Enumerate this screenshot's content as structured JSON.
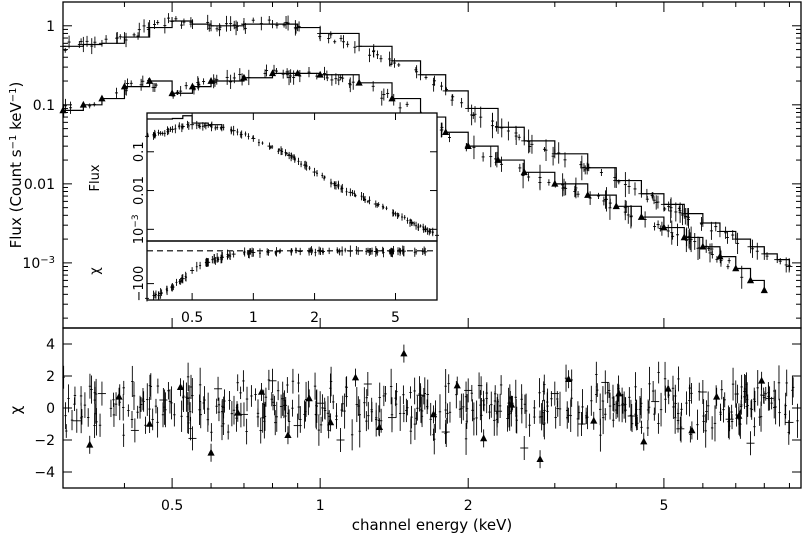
{
  "chart_data": [
    {
      "panel": "main-spectrum",
      "type": "scatter",
      "xlabel": "",
      "ylabel": "Flux (Count s^-1 keV^-1)",
      "x_scale": "log",
      "y_scale": "log",
      "xlim": [
        0.3,
        9.5
      ],
      "ylim": [
        0.00015,
        2.0
      ],
      "y_ticks": [
        {
          "value": 1,
          "label": "1"
        },
        {
          "value": 0.1,
          "label": "0.1"
        },
        {
          "value": 0.01,
          "label": "0.01"
        },
        {
          "value": 0.001,
          "label": "10^-3"
        }
      ],
      "ylabel_parts": {
        "base": "Flux (Count s",
        "exp1": "−1",
        "mid": " keV",
        "exp2": "−1",
        "end": ")"
      },
      "ytick_exp_parts": {
        "base": "10",
        "exp": "−3"
      },
      "series": [
        {
          "marker": "cross",
          "points": [
            {
              "x": 0.3,
              "y": 0.55
            },
            {
              "x": 0.33,
              "y": 0.58
            },
            {
              "x": 0.36,
              "y": 0.6
            },
            {
              "x": 0.4,
              "y": 0.72
            },
            {
              "x": 0.45,
              "y": 0.95
            },
            {
              "x": 0.5,
              "y": 1.15
            },
            {
              "x": 0.55,
              "y": 1.05
            },
            {
              "x": 0.6,
              "y": 1.0
            },
            {
              "x": 0.7,
              "y": 1.05
            },
            {
              "x": 0.8,
              "y": 1.05
            },
            {
              "x": 0.9,
              "y": 0.95
            },
            {
              "x": 1.0,
              "y": 0.8
            },
            {
              "x": 1.2,
              "y": 0.55
            },
            {
              "x": 1.4,
              "y": 0.36
            },
            {
              "x": 1.6,
              "y": 0.24
            },
            {
              "x": 1.8,
              "y": 0.15
            },
            {
              "x": 2.0,
              "y": 0.09
            },
            {
              "x": 2.3,
              "y": 0.052
            },
            {
              "x": 2.6,
              "y": 0.035
            },
            {
              "x": 3.0,
              "y": 0.024
            },
            {
              "x": 3.5,
              "y": 0.016
            },
            {
              "x": 4.0,
              "y": 0.011
            },
            {
              "x": 4.5,
              "y": 0.0075
            },
            {
              "x": 5.0,
              "y": 0.0055
            },
            {
              "x": 5.5,
              "y": 0.0042
            },
            {
              "x": 6.0,
              "y": 0.0032
            },
            {
              "x": 6.5,
              "y": 0.0025
            },
            {
              "x": 7.0,
              "y": 0.002
            },
            {
              "x": 7.5,
              "y": 0.0016
            },
            {
              "x": 8.0,
              "y": 0.0013
            },
            {
              "x": 8.5,
              "y": 0.0011
            },
            {
              "x": 9.0,
              "y": 0.0009
            }
          ]
        },
        {
          "marker": "triangle",
          "points": [
            {
              "x": 0.3,
              "y": 0.085
            },
            {
              "x": 0.33,
              "y": 0.1
            },
            {
              "x": 0.36,
              "y": 0.12
            },
            {
              "x": 0.4,
              "y": 0.17
            },
            {
              "x": 0.45,
              "y": 0.2
            },
            {
              "x": 0.5,
              "y": 0.14
            },
            {
              "x": 0.55,
              "y": 0.17
            },
            {
              "x": 0.6,
              "y": 0.2
            },
            {
              "x": 0.7,
              "y": 0.22
            },
            {
              "x": 0.8,
              "y": 0.25
            },
            {
              "x": 0.9,
              "y": 0.25
            },
            {
              "x": 1.0,
              "y": 0.24
            },
            {
              "x": 1.2,
              "y": 0.19
            },
            {
              "x": 1.4,
              "y": 0.12
            },
            {
              "x": 1.6,
              "y": 0.07
            },
            {
              "x": 1.8,
              "y": 0.045
            },
            {
              "x": 2.0,
              "y": 0.03
            },
            {
              "x": 2.3,
              "y": 0.02
            },
            {
              "x": 2.6,
              "y": 0.014
            },
            {
              "x": 3.0,
              "y": 0.01
            },
            {
              "x": 3.5,
              "y": 0.0072
            },
            {
              "x": 4.0,
              "y": 0.0052
            },
            {
              "x": 4.5,
              "y": 0.0038
            },
            {
              "x": 5.0,
              "y": 0.0028
            },
            {
              "x": 5.5,
              "y": 0.0021
            },
            {
              "x": 6.0,
              "y": 0.0016
            },
            {
              "x": 6.5,
              "y": 0.0012
            },
            {
              "x": 7.0,
              "y": 0.00085
            },
            {
              "x": 7.5,
              "y": 0.0006
            },
            {
              "x": 8.0,
              "y": 0.00045
            }
          ]
        }
      ]
    },
    {
      "panel": "residuals",
      "type": "scatter",
      "xlabel": "channel energy (keV)",
      "ylabel": "χ",
      "x_scale": "log",
      "xlim": [
        0.3,
        9.5
      ],
      "ylim": [
        -5,
        5
      ],
      "x_ticks": [
        {
          "value": 0.5,
          "label": "0.5"
        },
        {
          "value": 1,
          "label": "1"
        },
        {
          "value": 2,
          "label": "2"
        },
        {
          "value": 5,
          "label": "5"
        }
      ],
      "y_ticks": [
        {
          "value": 4,
          "label": "4"
        },
        {
          "value": 2,
          "label": "2"
        },
        {
          "value": 0,
          "label": "0"
        },
        {
          "value": -2,
          "label": "−2"
        },
        {
          "value": -4,
          "label": "−4"
        }
      ],
      "series": [
        {
          "marker": "cross",
          "points": [
            {
              "x": 0.32,
              "y": -0.8
            },
            {
              "x": 0.36,
              "y": 0.9
            },
            {
              "x": 0.42,
              "y": -1.4
            },
            {
              "x": 0.48,
              "y": 0.5
            },
            {
              "x": 0.55,
              "y": -1.9
            },
            {
              "x": 0.62,
              "y": 1.2
            },
            {
              "x": 0.7,
              "y": -0.4
            },
            {
              "x": 0.8,
              "y": 1.7
            },
            {
              "x": 0.9,
              "y": -1.1
            },
            {
              "x": 1.0,
              "y": 0.3
            },
            {
              "x": 1.1,
              "y": -2.0
            },
            {
              "x": 1.25,
              "y": 1.5
            },
            {
              "x": 1.4,
              "y": -0.6
            },
            {
              "x": 1.6,
              "y": 0.8
            },
            {
              "x": 1.8,
              "y": -1.5
            },
            {
              "x": 2.0,
              "y": 1.1
            },
            {
              "x": 2.3,
              "y": -0.2
            },
            {
              "x": 2.6,
              "y": -2.5
            },
            {
              "x": 3.0,
              "y": 0.9
            },
            {
              "x": 3.4,
              "y": -1.0
            },
            {
              "x": 3.8,
              "y": 1.6
            },
            {
              "x": 4.3,
              "y": -0.5
            },
            {
              "x": 4.8,
              "y": 0.4
            },
            {
              "x": 5.4,
              "y": -1.3
            },
            {
              "x": 6.0,
              "y": 1.0
            },
            {
              "x": 6.8,
              "y": -0.7
            },
            {
              "x": 7.5,
              "y": -2.2
            },
            {
              "x": 8.2,
              "y": 0.6
            },
            {
              "x": 9.0,
              "y": -0.9
            }
          ]
        },
        {
          "marker": "triangle",
          "points": [
            {
              "x": 0.34,
              "y": -2.3
            },
            {
              "x": 0.39,
              "y": 0.7
            },
            {
              "x": 0.45,
              "y": -1.0
            },
            {
              "x": 0.52,
              "y": 1.3
            },
            {
              "x": 0.6,
              "y": -2.8
            },
            {
              "x": 0.68,
              "y": -0.3
            },
            {
              "x": 0.76,
              "y": 1.0
            },
            {
              "x": 0.86,
              "y": -1.7
            },
            {
              "x": 0.95,
              "y": 0.6
            },
            {
              "x": 1.05,
              "y": -0.9
            },
            {
              "x": 1.18,
              "y": 1.9
            },
            {
              "x": 1.32,
              "y": -1.2
            },
            {
              "x": 1.48,
              "y": 3.4
            },
            {
              "x": 1.7,
              "y": -0.4
            },
            {
              "x": 1.9,
              "y": 1.4
            },
            {
              "x": 2.15,
              "y": -1.9
            },
            {
              "x": 2.45,
              "y": 0.2
            },
            {
              "x": 2.8,
              "y": -3.2
            },
            {
              "x": 3.2,
              "y": 1.8
            },
            {
              "x": 3.6,
              "y": -0.8
            },
            {
              "x": 4.05,
              "y": 0.9
            },
            {
              "x": 4.55,
              "y": -2.1
            },
            {
              "x": 5.1,
              "y": 1.2
            },
            {
              "x": 5.7,
              "y": -1.4
            },
            {
              "x": 6.4,
              "y": 0.7
            },
            {
              "x": 7.1,
              "y": -0.5
            },
            {
              "x": 7.9,
              "y": 1.7
            }
          ]
        }
      ],
      "reference_line": 0
    },
    {
      "panel": "inset-spectrum",
      "type": "scatter",
      "ylabel": "Flux",
      "x_scale": "log",
      "y_scale": "log",
      "xlim": [
        0.3,
        8.0
      ],
      "ylim": [
        0.0005,
        1.0
      ],
      "y_ticks": [
        {
          "value": 0.1,
          "label": "0.1"
        },
        {
          "value": 0.01,
          "label": "0.01"
        },
        {
          "value": 0.001,
          "label": "10^-3"
        }
      ],
      "ytick_exp_parts": {
        "base": "10",
        "exp": "−3"
      },
      "series": [
        {
          "marker": "cross",
          "points": [
            {
              "x": 0.3,
              "y": 0.25
            },
            {
              "x": 0.35,
              "y": 0.3
            },
            {
              "x": 0.4,
              "y": 0.38
            },
            {
              "x": 0.45,
              "y": 0.45
            },
            {
              "x": 0.5,
              "y": 0.5
            },
            {
              "x": 0.6,
              "y": 0.48
            },
            {
              "x": 0.7,
              "y": 0.42
            },
            {
              "x": 0.8,
              "y": 0.35
            },
            {
              "x": 1.0,
              "y": 0.22
            },
            {
              "x": 1.2,
              "y": 0.14
            },
            {
              "x": 1.5,
              "y": 0.08
            },
            {
              "x": 1.8,
              "y": 0.045
            },
            {
              "x": 2.0,
              "y": 0.03
            },
            {
              "x": 2.5,
              "y": 0.015
            },
            {
              "x": 3.0,
              "y": 0.009
            },
            {
              "x": 4.0,
              "y": 0.0045
            },
            {
              "x": 5.0,
              "y": 0.0025
            },
            {
              "x": 6.0,
              "y": 0.0015
            },
            {
              "x": 7.0,
              "y": 0.001
            },
            {
              "x": 8.0,
              "y": 0.0007
            }
          ]
        }
      ],
      "model": [
        {
          "x": 0.3,
          "y": 0.7
        },
        {
          "x": 0.4,
          "y": 0.72
        },
        {
          "x": 0.45,
          "y": 0.85
        },
        {
          "x": 0.5,
          "y": 0.55
        },
        {
          "x": 0.6,
          "y": 0.5
        },
        {
          "x": 0.7,
          "y": 0.43
        }
      ]
    },
    {
      "panel": "inset-residuals",
      "type": "scatter",
      "ylabel": "χ",
      "x_scale": "log",
      "xlim": [
        0.3,
        8.0
      ],
      "ylim": [
        -150,
        30
      ],
      "x_ticks": [
        {
          "value": 0.5,
          "label": "0.5"
        },
        {
          "value": 1,
          "label": "1"
        },
        {
          "value": 2,
          "label": "2"
        },
        {
          "value": 5,
          "label": "5"
        }
      ],
      "y_ticks": [
        {
          "value": -100,
          "label": "−100"
        }
      ],
      "series": [
        {
          "marker": "cross",
          "points": [
            {
              "x": 0.3,
              "y": -145
            },
            {
              "x": 0.35,
              "y": -130
            },
            {
              "x": 0.4,
              "y": -110
            },
            {
              "x": 0.45,
              "y": -85
            },
            {
              "x": 0.5,
              "y": -60
            },
            {
              "x": 0.6,
              "y": -35
            },
            {
              "x": 0.7,
              "y": -20
            },
            {
              "x": 0.8,
              "y": -10
            },
            {
              "x": 1.0,
              "y": -5
            },
            {
              "x": 1.3,
              "y": -3
            },
            {
              "x": 1.7,
              "y": -2
            },
            {
              "x": 2.2,
              "y": -2
            },
            {
              "x": 3.0,
              "y": -1
            },
            {
              "x": 4.0,
              "y": -2
            },
            {
              "x": 5.5,
              "y": -1
            },
            {
              "x": 7.0,
              "y": -3
            }
          ]
        }
      ],
      "reference_line": 0
    }
  ]
}
